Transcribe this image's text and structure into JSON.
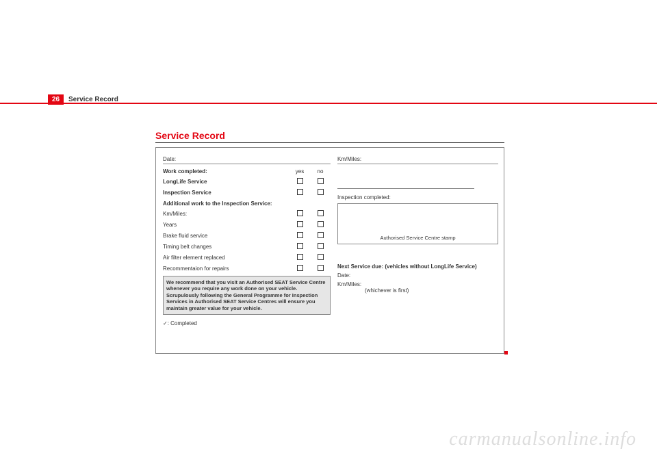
{
  "header": {
    "page_number": "26",
    "running_title": "Service Record"
  },
  "section": {
    "title": "Service Record"
  },
  "left": {
    "date_label": "Date:",
    "work_completed": "Work completed:",
    "yes": "yes",
    "no": "no",
    "longlife": "LongLife Service",
    "inspection": "Inspection Service",
    "additional": "Additional work to the Inspection Service:",
    "km_miles": "Km/Miles:",
    "years": "Years",
    "brake_fluid": "Brake fluid service",
    "timing_belt": "Timing belt changes",
    "air_filter": "Air filter element replaced",
    "recommendation": "Recommentaion for repairs",
    "recommend_box": "We recommend that you visit an Authorised SEAT Service Centre whenever you require any work done on your vehicle. Scrupulously following the General Programme for Inspection Services in Authorised SEAT Service Centres will ensure you maintain greater value for your vehicle.",
    "legend": "✓: Completed"
  },
  "right": {
    "km_miles": "Km/Miles:",
    "inspection_completed": "Inspection completed:",
    "stamp": "Authorised Service Centre stamp",
    "next_service": "Next Service due: (vehicles without LongLife Service)",
    "date_label": "Date:",
    "km_miles2": "Km/Miles:",
    "whichever": "(whichever is first)"
  },
  "watermark": "carmanualsonline.info",
  "colors": {
    "accent": "#e30613",
    "text": "#333333",
    "border": "#888888",
    "box_bg": "#e6e6e6"
  }
}
